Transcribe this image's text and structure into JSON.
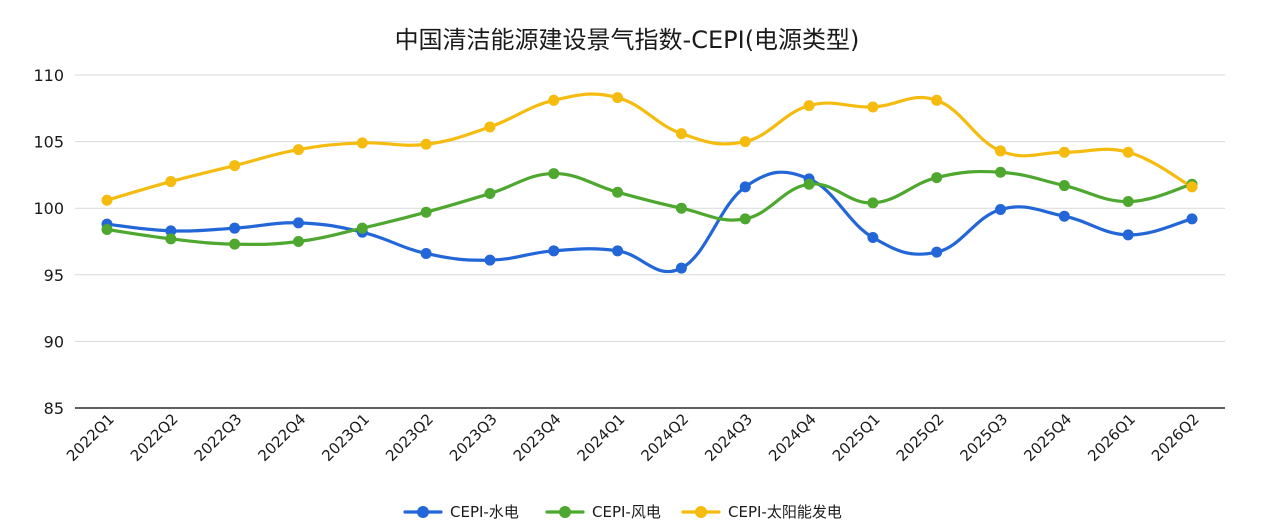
{
  "chart_data": {
    "type": "line",
    "title": "中国清洁能源建设景气指数-CEPI(电源类型)",
    "xlabel": "",
    "ylabel": "",
    "categories": [
      "2022Q1",
      "2022Q2",
      "2022Q3",
      "2022Q4",
      "2023Q1",
      "2023Q2",
      "2023Q3",
      "2023Q4",
      "2024Q1",
      "2024Q2",
      "2024Q3",
      "2024Q4",
      "2025Q1",
      "2025Q2",
      "2025Q3",
      "2025Q4",
      "2026Q1",
      "2026Q2"
    ],
    "ylim": [
      85,
      110
    ],
    "yticks": [
      "85",
      "90",
      "95",
      "100",
      "105",
      "110"
    ],
    "smooth": true,
    "grid": "horizontal",
    "legend_position": "bottom",
    "series": [
      {
        "name": "CEPI-水电",
        "color": "#2266d8",
        "values": [
          98.8,
          98.3,
          98.5,
          98.9,
          98.2,
          96.6,
          96.1,
          96.8,
          96.8,
          95.5,
          101.6,
          102.2,
          97.8,
          96.7,
          99.9,
          99.4,
          98.0,
          99.2
        ]
      },
      {
        "name": "CEPI-风电",
        "color": "#4ea72e",
        "values": [
          98.4,
          97.7,
          97.3,
          97.5,
          98.5,
          99.7,
          101.1,
          102.6,
          101.2,
          100.0,
          99.2,
          101.8,
          100.4,
          102.3,
          102.7,
          101.7,
          100.5,
          101.8
        ]
      },
      {
        "name": "CEPI-太阳能发电",
        "color": "#f5bc0f",
        "values": [
          100.6,
          102.0,
          103.2,
          104.4,
          104.9,
          104.8,
          106.1,
          108.1,
          108.3,
          105.6,
          105.0,
          107.7,
          107.6,
          108.1,
          104.3,
          104.2,
          104.2,
          101.6
        ]
      }
    ]
  }
}
